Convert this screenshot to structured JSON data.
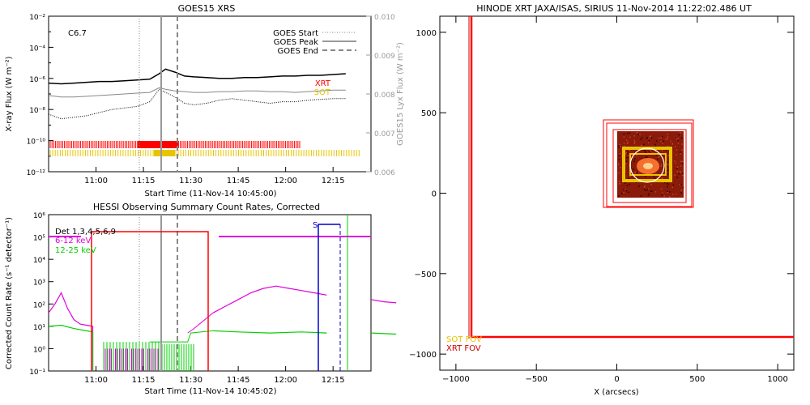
{
  "chart_data": [
    {
      "type": "line",
      "title": "GOES15 XRS",
      "xlabel": "Start Time (11-Nov-14 10:45:00)",
      "ylabel": "X-ray Flux (W m⁻²)",
      "ylabel_right": "GOES15 Lyx Flux (W m⁻²)",
      "flare_class": "C6.7",
      "x_ticks": [
        "11:00",
        "11:15",
        "11:30",
        "11:45",
        "12:00",
        "12:15"
      ],
      "y_ticks": [
        "10⁻¹²",
        "10⁻¹⁰",
        "10⁻⁸",
        "10⁻⁶",
        "10⁻⁴",
        "10⁻²"
      ],
      "y_right_ticks": [
        "0.006",
        "0.007",
        "0.008",
        "0.009",
        "0.010"
      ],
      "ylim_log": [
        -12,
        -2
      ],
      "y_right_lim": [
        0.006,
        0.01
      ],
      "event_lines": {
        "start": "11:15",
        "peak": "11:22",
        "end": "11:28"
      },
      "legend": [
        {
          "label": "GOES Start",
          "style": "dotted"
        },
        {
          "label": "GOES Peak",
          "style": "solid"
        },
        {
          "label": "GOES End",
          "style": "dashed"
        }
      ],
      "instrument_labels": [
        {
          "label": "XRT",
          "color": "#ff0000"
        },
        {
          "label": "SOT",
          "color": "#e8c400"
        }
      ],
      "series": [
        {
          "name": "",
          "style": "solid-black",
          "log_values": [
            -6.3,
            -6.35,
            -6.3,
            -6.25,
            -6.2,
            -6.2,
            -6.15,
            -6.1,
            -6.05,
            -5.7,
            -5.4,
            -5.6,
            -5.85,
            -5.9,
            -5.95,
            -6.0,
            -6.0,
            -5.95,
            -5.95,
            -5.9,
            -5.85,
            -5.85,
            -5.8,
            -5.8,
            -5.75,
            -5.7
          ]
        },
        {
          "name": "",
          "style": "solid-gray",
          "log_values": [
            -7.1,
            -7.2,
            -7.2,
            -7.15,
            -7.1,
            -7.05,
            -7.0,
            -6.95,
            -6.9,
            -6.6,
            -6.7,
            -6.8,
            -6.85,
            -6.9,
            -6.9,
            -6.85,
            -6.85,
            -6.8,
            -6.8,
            -6.85,
            -6.85,
            -6.9,
            -6.85,
            -6.8,
            -6.75,
            -6.75
          ]
        },
        {
          "name": "",
          "style": "dotted-black",
          "log_values": [
            -8.3,
            -8.6,
            -8.5,
            -8.4,
            -8.2,
            -8.0,
            -7.9,
            -7.8,
            -7.5,
            -6.7,
            -6.9,
            -7.2,
            -7.6,
            -7.7,
            -7.6,
            -7.4,
            -7.3,
            -7.4,
            -7.5,
            -7.6,
            -7.5,
            -7.5,
            -7.4,
            -7.35,
            -7.3,
            -7.3
          ]
        }
      ],
      "x_minutes": [
        0,
        4,
        8,
        12,
        16,
        20,
        24,
        28,
        32,
        35,
        37,
        40,
        43,
        46,
        50,
        54,
        58,
        62,
        66,
        70,
        74,
        78,
        82,
        86,
        90,
        94
      ]
    },
    {
      "type": "line",
      "title": "HESSI Observing Summary Count Rates, Corrected",
      "xlabel": "Start Time (11-Nov-14 10:45:02)",
      "ylabel": "Corrected Count Rate (s⁻¹ detector⁻¹)",
      "x_ticks": [
        "11:00",
        "11:15",
        "11:30",
        "11:45",
        "12:00",
        "12:15"
      ],
      "y_ticks": [
        "10⁻¹",
        "10⁰",
        "10¹",
        "10²",
        "10³",
        "10⁴",
        "10⁵",
        "10⁶"
      ],
      "ylim_log": [
        -1,
        6
      ],
      "annotation": "S",
      "legend": [
        {
          "label": "Det 1,3,4,5,6,9",
          "color": "#000000"
        },
        {
          "label": "6-12 keV",
          "color": "#e000e0"
        },
        {
          "label": "12-25 keV",
          "color": "#00d000"
        }
      ],
      "series": [
        {
          "name": "6-12 keV",
          "x_minutes": [
            0,
            2,
            4,
            6,
            8,
            10,
            12,
            14
          ],
          "log_values": [
            1.6,
            2.0,
            2.5,
            1.8,
            1.3,
            1.1,
            1.05,
            1.0
          ]
        },
        {
          "name": "6-12 keV",
          "x_minutes": [
            52,
            56,
            60,
            64,
            68,
            72,
            76,
            80,
            84,
            88
          ],
          "log_values": [
            1.6,
            1.9,
            2.2,
            2.5,
            2.7,
            2.8,
            2.7,
            2.6,
            2.5,
            2.4
          ]
        },
        {
          "name": "6-12 keV",
          "x_minutes": [
            102,
            106,
            110
          ],
          "log_values": [
            2.2,
            2.1,
            2.05
          ]
        },
        {
          "name": "12-25 keV",
          "x_minutes": [
            0,
            4,
            8,
            12,
            14
          ],
          "log_values": [
            1.0,
            1.05,
            0.9,
            0.8,
            0.75
          ]
        },
        {
          "name": "12-25 keV",
          "x_minutes": [
            52,
            60,
            70,
            80,
            88
          ],
          "log_values": [
            0.8,
            0.75,
            0.7,
            0.75,
            0.7
          ]
        },
        {
          "name": "12-25 keV",
          "x_minutes": [
            102,
            110
          ],
          "log_values": [
            0.7,
            0.65
          ]
        }
      ]
    },
    {
      "type": "scatter",
      "title": "HINODE XRT JAXA/ISAS, SIRIUS 11-Nov-2014 11:22:02.486 UT",
      "xlabel": "X (arcsecs)",
      "ylabel": "",
      "x_ticks": [
        "−1000",
        "−500",
        "0",
        "500",
        "1000"
      ],
      "y_ticks": [
        "−1000",
        "−500",
        "0",
        "500",
        "1000"
      ],
      "xlim": [
        -1100,
        1100
      ],
      "ylim": [
        -1100,
        1100
      ],
      "labels": [
        {
          "label": "SOT FOV",
          "color": "#e8c400"
        },
        {
          "label": "XRT FOV",
          "color": "#cc0000"
        }
      ],
      "xrt_fov": {
        "x0": -900,
        "x1": 1100,
        "y0": -880,
        "y1": 1100
      },
      "roi_center": [
        200,
        180
      ]
    }
  ]
}
